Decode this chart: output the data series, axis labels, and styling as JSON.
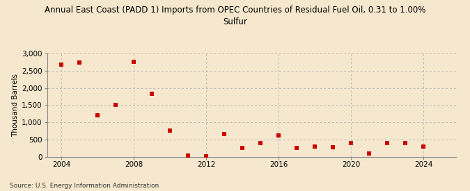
{
  "title": "Annual East Coast (PADD 1) Imports from OPEC Countries of Residual Fuel Oil, 0.31 to 1.00%\nSulfur",
  "ylabel": "Thousand Barrels",
  "source": "Source: U.S. Energy Information Administration",
  "background_color": "#f5e8ce",
  "plot_bg_color": "#f5e8ce",
  "marker_color": "#cc0000",
  "years": [
    2004,
    2005,
    2006,
    2007,
    2008,
    2009,
    2010,
    2011,
    2012,
    2013,
    2014,
    2015,
    2016,
    2017,
    2018,
    2019,
    2020,
    2021,
    2022,
    2023,
    2024
  ],
  "values": [
    2680,
    2730,
    1200,
    1500,
    2760,
    1830,
    760,
    30,
    20,
    650,
    250,
    400,
    620,
    250,
    300,
    280,
    390,
    100,
    400,
    390,
    300
  ],
  "ylim": [
    0,
    3000
  ],
  "yticks": [
    0,
    500,
    1000,
    1500,
    2000,
    2500,
    3000
  ],
  "xlim": [
    2003.2,
    2025.8
  ],
  "xticks": [
    2004,
    2008,
    2012,
    2016,
    2020,
    2024
  ],
  "grid_color": "#bbbbbb",
  "title_fontsize": 8.5,
  "label_fontsize": 7.5,
  "tick_fontsize": 7.5,
  "source_fontsize": 6.5
}
